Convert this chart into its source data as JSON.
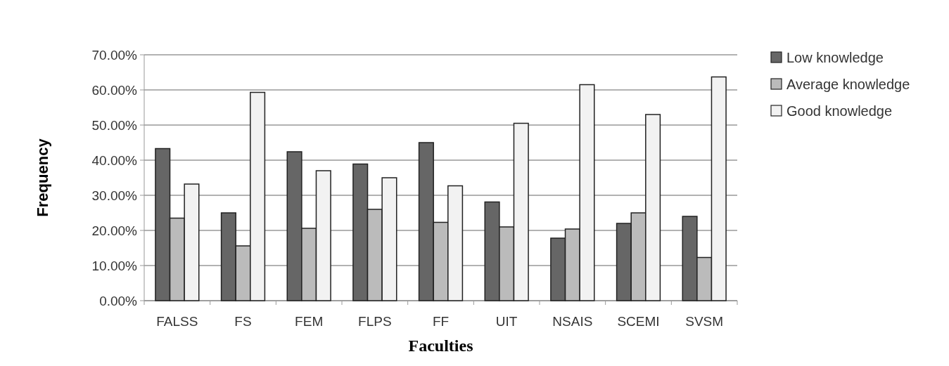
{
  "chart_data": {
    "type": "bar",
    "xlabel": "Faculties",
    "ylabel": "Frequency",
    "categories": [
      "FALSS",
      "FS",
      "FEM",
      "FLPS",
      "FF",
      "UIT",
      "NSAIS",
      "SCEMI",
      "SVSM"
    ],
    "series": [
      {
        "name": "Low knowledge",
        "color": "#666666",
        "values": [
          43.3,
          25,
          42.4,
          38.9,
          45,
          28.1,
          17.8,
          22,
          24
        ]
      },
      {
        "name": "Average knowledge",
        "color": "#bbbbbb",
        "values": [
          23.5,
          15.6,
          20.6,
          26,
          22.3,
          21,
          20.4,
          25,
          12.3
        ]
      },
      {
        "name": "Good knowledge",
        "color": "#f2f2f2",
        "values": [
          33.2,
          59.3,
          37,
          35,
          32.7,
          50.5,
          61.5,
          53,
          63.7
        ]
      }
    ],
    "ylim": [
      0,
      70
    ],
    "yticks": [
      {
        "value": 0,
        "label": "0.00%"
      },
      {
        "value": 10,
        "label": "10.00%"
      },
      {
        "value": 20,
        "label": "20.00%"
      },
      {
        "value": 30,
        "label": "30.00%"
      },
      {
        "value": 40,
        "label": "40.00%"
      },
      {
        "value": 50,
        "label": "50.00%"
      },
      {
        "value": 60,
        "label": "60.00%"
      },
      {
        "value": 70,
        "label": "70.00%"
      }
    ],
    "grid": "y",
    "legend": "top right"
  }
}
